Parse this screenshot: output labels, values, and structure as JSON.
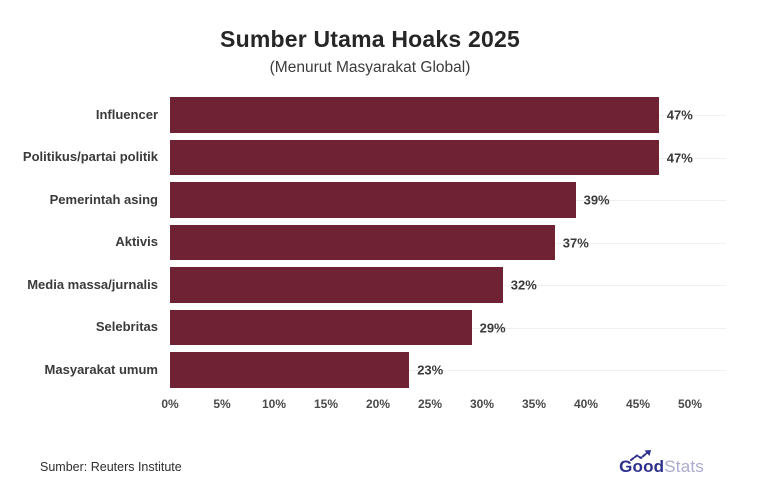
{
  "header": {
    "title": "Sumber Utama Hoaks 2025",
    "subtitle": "(Menurut Masyarakat Global)"
  },
  "chart_data": {
    "type": "bar",
    "orientation": "horizontal",
    "title": "Sumber Utama Hoaks 2025",
    "subtitle": "(Menurut Masyarakat Global)",
    "categories": [
      "Influencer",
      "Politikus/partai politik",
      "Pemerintah asing",
      "Aktivis",
      "Media massa/jurnalis",
      "Selebritas",
      "Masyarakat umum"
    ],
    "values": [
      47,
      47,
      39,
      37,
      32,
      29,
      23
    ],
    "value_labels": [
      "47%",
      "47%",
      "39%",
      "37%",
      "32%",
      "29%",
      "23%"
    ],
    "xlim": [
      0,
      50
    ],
    "x_ticks": [
      "0%",
      "5%",
      "10%",
      "15%",
      "20%",
      "25%",
      "30%",
      "35%",
      "40%",
      "45%",
      "50%"
    ],
    "grid": "faint horizontal line at each bar midline",
    "legend": "none",
    "bar_color": "#6F2233"
  },
  "footer": {
    "source": "Sumber: Reuters Institute",
    "logo": {
      "part1": "Good",
      "part2": "Stats",
      "color1": "#2D2F8E",
      "color2": "#ABABCE"
    }
  }
}
